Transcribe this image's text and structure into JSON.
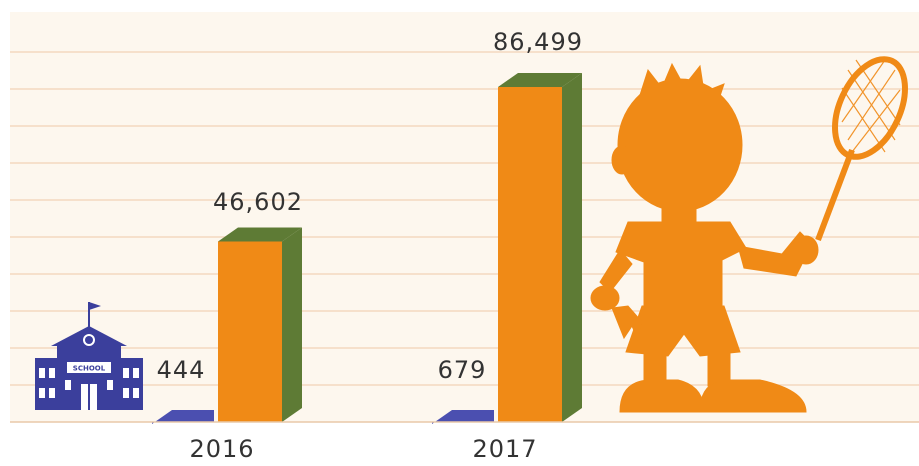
{
  "chart_data": {
    "type": "bar",
    "categories": [
      "2016",
      "2017"
    ],
    "series": [
      {
        "values": [
          444,
          679
        ]
      },
      {
        "values": [
          46602,
          86499
        ]
      }
    ],
    "value_labels": [
      [
        "444",
        "46,602"
      ],
      [
        "679",
        "86,499"
      ]
    ],
    "ylim": [
      0,
      90000
    ],
    "grid": true,
    "colors": {
      "series_small_front": "#4b4fb0",
      "series_small_side": "#3a3d8f",
      "series_large_front": "#f08a16",
      "series_large_side": "#5e7b35",
      "background": "#fdf7ee",
      "gridline": "#f4d9bf",
      "illustration": "#f08a16",
      "school": "#3b3f9c"
    }
  },
  "illustration": {
    "school_icon": "school-building-icon",
    "school_sign": "SCHOOL",
    "kid_icon": "kid-with-badminton-racket-icon"
  }
}
